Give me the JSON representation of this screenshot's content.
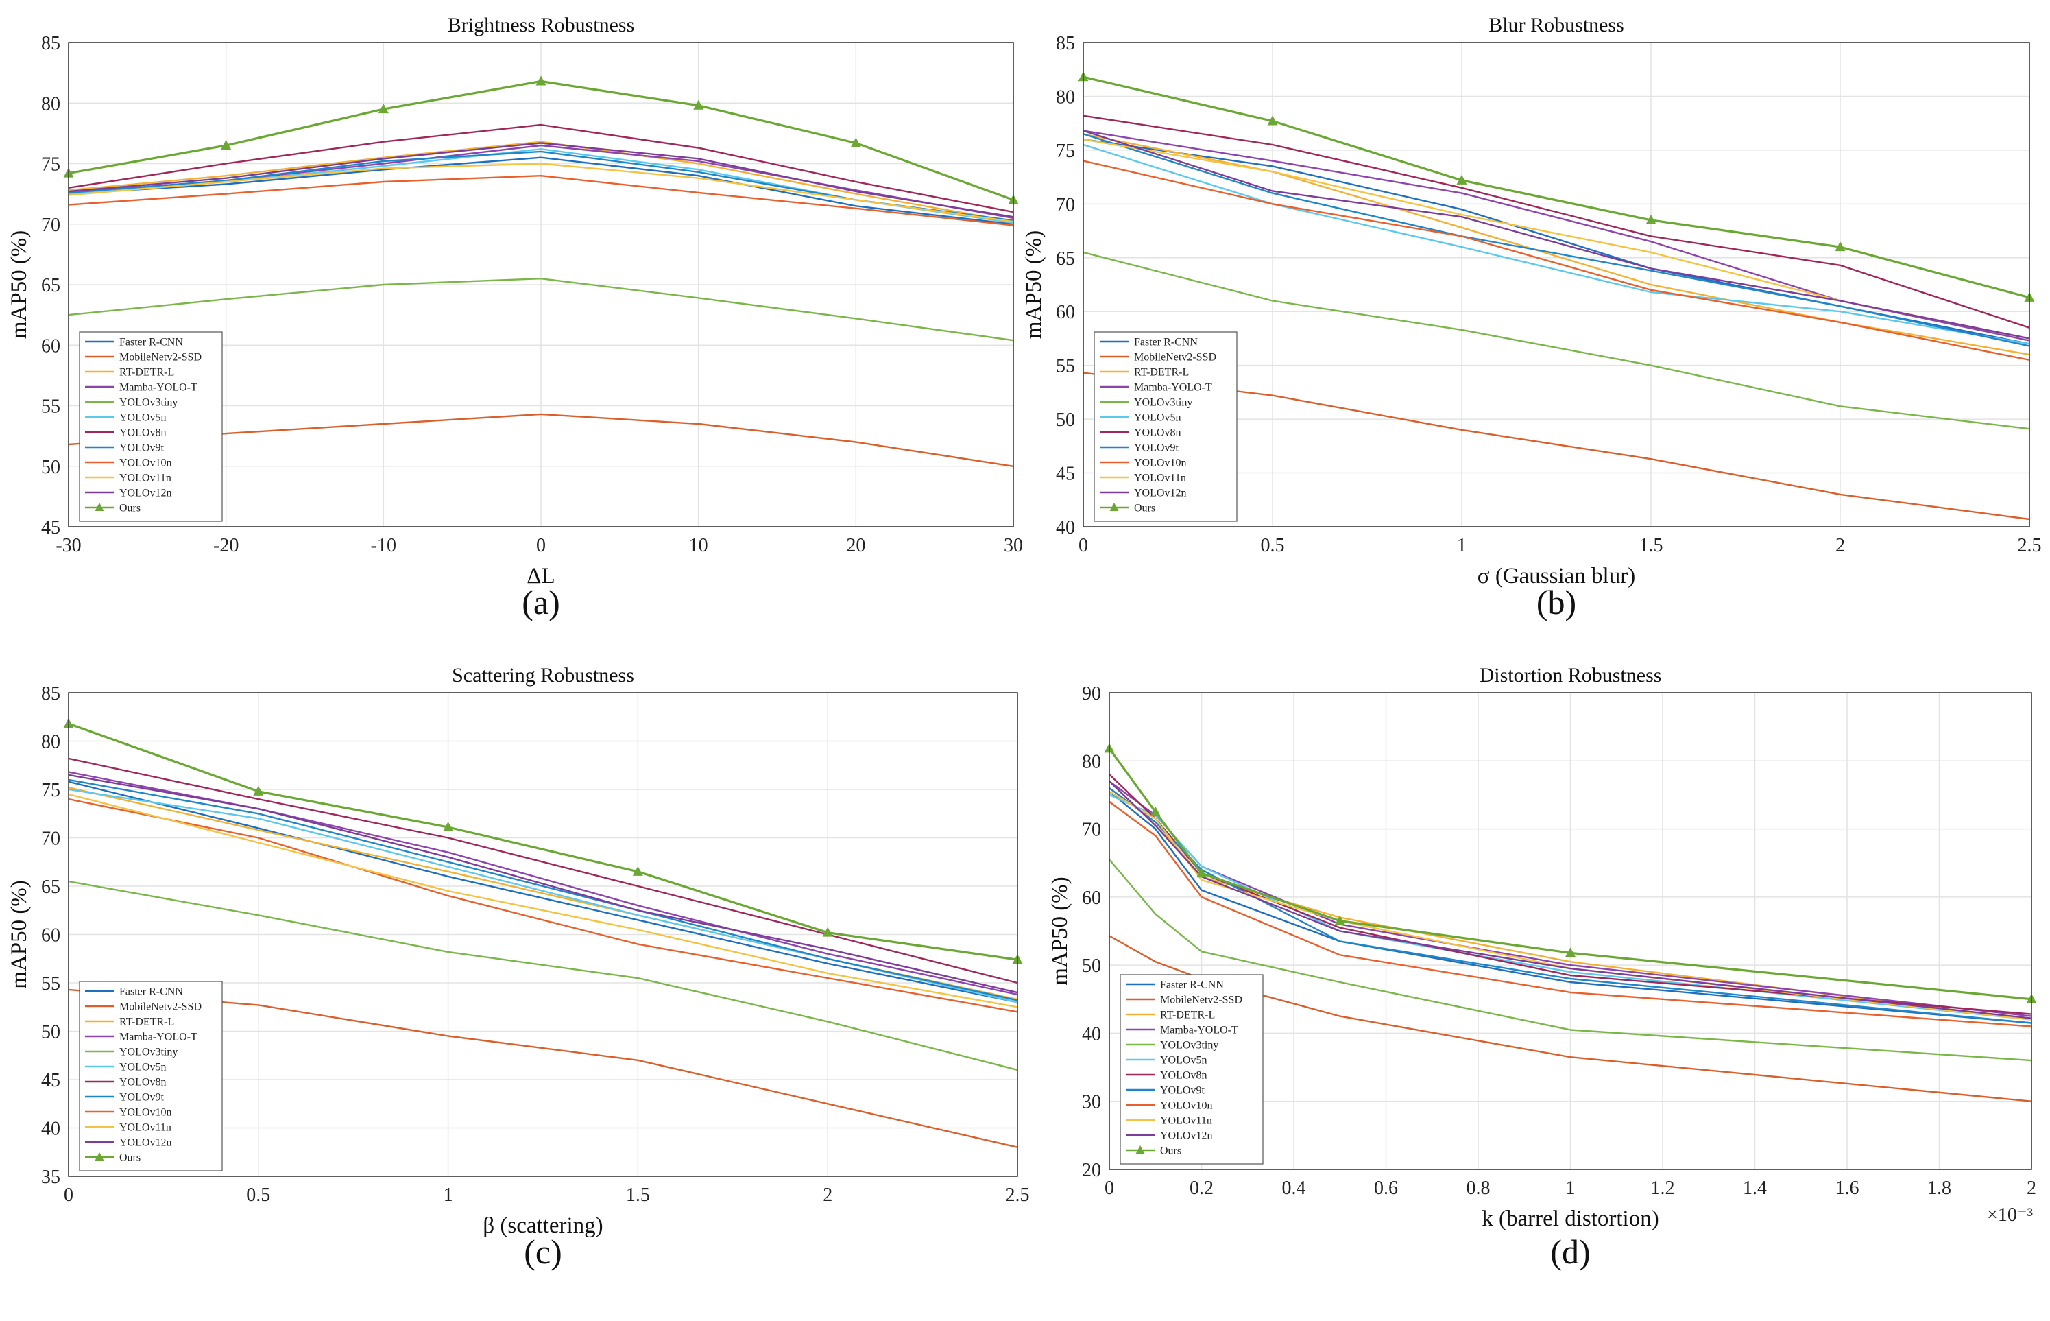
{
  "series_names": [
    "Faster R-CNN",
    "MobileNetv2-SSD",
    "RT-DETR-L",
    "Mamba-YOLO-T",
    "YOLOv3tiny",
    "YOLOv5n",
    "YOLOv8n",
    "YOLOv9t",
    "YOLOv10n",
    "YOLOv11n",
    "YOLOv12n",
    "Ours"
  ],
  "series_colors": [
    "#1f6fbf",
    "#d95f2b",
    "#f2b134",
    "#8e44ad",
    "#7ab648",
    "#5bc8ee",
    "#a0275a",
    "#1f86c8",
    "#e8602c",
    "#f5c242",
    "#7d3c98",
    "#6aa833"
  ],
  "ylabel": "mAP50 (%)",
  "chart_data": [
    {
      "type": "line",
      "title": "Brightness Robustness",
      "xlabel": "ΔL",
      "panel_label": "(a)",
      "x": [
        -30,
        -20,
        -10,
        0,
        10,
        20,
        30
      ],
      "xticks": [
        -30,
        -20,
        -10,
        0,
        10,
        20,
        30
      ],
      "xlim": [
        -30,
        30
      ],
      "ylim": [
        45,
        85
      ],
      "yticks": [
        45,
        50,
        55,
        60,
        65,
        70,
        75,
        80,
        85
      ],
      "legend_position": "bottom-left",
      "series": [
        {
          "name": "Faster R-CNN",
          "values": [
            72.5,
            73.3,
            74.5,
            75.5,
            74.0,
            71.5,
            70.0
          ]
        },
        {
          "name": "MobileNetv2-SSD",
          "values": [
            51.8,
            52.7,
            53.5,
            54.3,
            53.5,
            52.0,
            50.0
          ]
        },
        {
          "name": "RT-DETR-L",
          "values": [
            72.8,
            74.0,
            75.5,
            76.8,
            75.0,
            72.5,
            70.2
          ]
        },
        {
          "name": "Mamba-YOLO-T",
          "values": [
            72.6,
            73.6,
            75.0,
            76.5,
            75.2,
            72.8,
            70.5
          ]
        },
        {
          "name": "YOLOv3tiny",
          "values": [
            62.5,
            63.8,
            65.0,
            65.5,
            63.9,
            62.2,
            60.4
          ]
        },
        {
          "name": "YOLOv5n",
          "values": [
            72.5,
            73.5,
            74.8,
            76.2,
            74.5,
            72.0,
            70.1
          ]
        },
        {
          "name": "YOLOv8n",
          "values": [
            73.0,
            75.0,
            76.8,
            78.2,
            76.3,
            73.5,
            71.0
          ]
        },
        {
          "name": "YOLOv9t",
          "values": [
            72.6,
            73.6,
            75.2,
            76.0,
            74.3,
            72.0,
            70.3
          ]
        },
        {
          "name": "YOLOv10n",
          "values": [
            71.6,
            72.5,
            73.5,
            74.0,
            72.6,
            71.3,
            69.9
          ]
        },
        {
          "name": "YOLOv11n",
          "values": [
            72.4,
            73.5,
            74.6,
            75.0,
            73.8,
            72.0,
            70.2
          ]
        },
        {
          "name": "YOLOv12n",
          "values": [
            72.7,
            73.8,
            75.4,
            76.7,
            75.4,
            72.7,
            70.6
          ]
        },
        {
          "name": "Ours",
          "values": [
            74.2,
            76.5,
            79.5,
            81.8,
            79.8,
            76.7,
            72.0
          ]
        }
      ]
    },
    {
      "type": "line",
      "title": "Blur Robustness",
      "xlabel": "σ (Gaussian blur)",
      "panel_label": "(b)",
      "x": [
        0,
        0.5,
        1,
        1.5,
        2,
        2.5
      ],
      "xticks": [
        0,
        0.5,
        1,
        1.5,
        2,
        2.5
      ],
      "xlim": [
        0,
        2.5
      ],
      "ylim": [
        40,
        85
      ],
      "yticks": [
        40,
        45,
        50,
        55,
        60,
        65,
        70,
        75,
        80,
        85
      ],
      "legend_position": "bottom-left",
      "series": [
        {
          "name": "Faster R-CNN",
          "values": [
            76.0,
            73.5,
            69.5,
            64.0,
            60.5,
            57.0
          ]
        },
        {
          "name": "MobileNetv2-SSD",
          "values": [
            54.3,
            52.2,
            49.0,
            46.3,
            43.0,
            40.7
          ]
        },
        {
          "name": "RT-DETR-L",
          "values": [
            76.5,
            73.0,
            67.8,
            62.5,
            59.0,
            56.0
          ]
        },
        {
          "name": "Mamba-YOLO-T",
          "values": [
            76.8,
            74.0,
            71.0,
            66.5,
            61.0,
            57.3
          ]
        },
        {
          "name": "YOLOv3tiny",
          "values": [
            65.5,
            61.0,
            58.3,
            55.0,
            51.2,
            49.1
          ]
        },
        {
          "name": "YOLOv5n",
          "values": [
            75.5,
            70.0,
            66.0,
            61.8,
            60.0,
            57.0
          ]
        },
        {
          "name": "YOLOv8n",
          "values": [
            78.2,
            75.5,
            71.5,
            67.0,
            64.3,
            58.5
          ]
        },
        {
          "name": "YOLOv9t",
          "values": [
            76.5,
            71.0,
            67.0,
            63.8,
            60.5,
            56.8
          ]
        },
        {
          "name": "YOLOv10n",
          "values": [
            74.0,
            70.0,
            67.0,
            62.0,
            59.0,
            55.5
          ]
        },
        {
          "name": "YOLOv11n",
          "values": [
            76.0,
            73.0,
            69.0,
            65.5,
            61.0,
            57.5
          ]
        },
        {
          "name": "YOLOv12n",
          "values": [
            76.8,
            71.2,
            68.8,
            64.0,
            61.0,
            57.5
          ]
        },
        {
          "name": "Ours",
          "values": [
            81.8,
            77.7,
            72.2,
            68.5,
            66.0,
            61.3
          ]
        }
      ]
    },
    {
      "type": "line",
      "title": "Scattering Robustness",
      "xlabel": "β (scattering)",
      "panel_label": "(c)",
      "x": [
        0,
        0.5,
        1,
        1.5,
        2,
        2.5
      ],
      "xticks": [
        0,
        0.5,
        1,
        1.5,
        2,
        2.5
      ],
      "xlim": [
        0,
        2.5
      ],
      "ylim": [
        35,
        85
      ],
      "yticks": [
        35,
        40,
        45,
        50,
        55,
        60,
        65,
        70,
        75,
        80,
        85
      ],
      "legend_position": "bottom-left",
      "series": [
        {
          "name": "Faster R-CNN",
          "values": [
            75.8,
            71.0,
            66.0,
            61.5,
            57.0,
            53.0
          ]
        },
        {
          "name": "MobileNetv2-SSD",
          "values": [
            54.3,
            52.7,
            49.5,
            47.0,
            42.5,
            38.0
          ]
        },
        {
          "name": "RT-DETR-L",
          "values": [
            75.2,
            70.8,
            66.5,
            62.0,
            57.5,
            53.3
          ]
        },
        {
          "name": "Mamba-YOLO-T",
          "values": [
            76.8,
            73.0,
            68.5,
            63.0,
            58.0,
            53.8
          ]
        },
        {
          "name": "YOLOv3tiny",
          "values": [
            65.5,
            62.0,
            58.2,
            55.5,
            51.0,
            46.0
          ]
        },
        {
          "name": "YOLOv5n",
          "values": [
            75.0,
            72.0,
            67.0,
            62.0,
            57.5,
            53.0
          ]
        },
        {
          "name": "YOLOv8n",
          "values": [
            78.2,
            74.0,
            70.0,
            65.0,
            60.0,
            55.0
          ]
        },
        {
          "name": "YOLOv9t",
          "values": [
            76.0,
            72.5,
            67.5,
            62.5,
            57.5,
            53.2
          ]
        },
        {
          "name": "YOLOv10n",
          "values": [
            74.0,
            70.0,
            64.0,
            59.0,
            55.5,
            52.0
          ]
        },
        {
          "name": "YOLOv11n",
          "values": [
            74.5,
            69.5,
            64.5,
            60.5,
            56.0,
            52.5
          ]
        },
        {
          "name": "YOLOv12n",
          "values": [
            76.5,
            73.0,
            68.0,
            62.5,
            58.5,
            54.0
          ]
        },
        {
          "name": "Ours",
          "values": [
            81.8,
            74.8,
            71.1,
            66.5,
            60.2,
            57.4
          ]
        }
      ]
    },
    {
      "type": "line",
      "title": "Distortion Robustness",
      "xlabel": "k (barrel distortion)",
      "panel_label": "(d)",
      "x_multiplier": "×10⁻³",
      "x": [
        0,
        0.1,
        0.2,
        0.5,
        1,
        2
      ],
      "xticks": [
        0,
        0.2,
        0.4,
        0.6,
        0.8,
        1,
        1.2,
        1.4,
        1.6,
        1.8,
        2
      ],
      "xlim": [
        0,
        2
      ],
      "ylim": [
        20,
        90
      ],
      "yticks": [
        20,
        30,
        40,
        50,
        60,
        70,
        80,
        90
      ],
      "legend_position": "bottom-left",
      "series": [
        {
          "name": "Faster R-CNN",
          "values": [
            75.5,
            70.0,
            61.0,
            53.5,
            47.5,
            41.5
          ]
        },
        {
          "name": "MobileNetv2-SSD",
          "values": [
            54.3,
            50.5,
            48.0,
            42.5,
            36.5,
            30.0
          ]
        },
        {
          "name": "RT-DETR-L",
          "values": [
            76.0,
            71.0,
            63.0,
            57.0,
            50.5,
            42.0
          ]
        },
        {
          "name": "Mamba-YOLO-T",
          "values": [
            77.0,
            72.0,
            64.5,
            56.0,
            50.0,
            42.5
          ]
        },
        {
          "name": "YOLOv3tiny",
          "values": [
            65.5,
            57.5,
            52.0,
            47.5,
            40.5,
            36.0
          ]
        },
        {
          "name": "YOLOv5n",
          "values": [
            75.0,
            72.0,
            64.5,
            55.0,
            49.0,
            42.0
          ]
        },
        {
          "name": "YOLOv8n",
          "values": [
            78.0,
            71.5,
            63.5,
            55.5,
            48.5,
            42.8
          ]
        },
        {
          "name": "YOLOv9t",
          "values": [
            76.0,
            71.0,
            64.0,
            53.5,
            48.0,
            41.5
          ]
        },
        {
          "name": "YOLOv10n",
          "values": [
            74.0,
            69.0,
            60.0,
            51.5,
            46.0,
            41.0
          ]
        },
        {
          "name": "YOLOv11n",
          "values": [
            75.5,
            71.5,
            62.5,
            56.5,
            49.5,
            42.0
          ]
        },
        {
          "name": "YOLOv12n",
          "values": [
            77.0,
            70.5,
            63.0,
            55.0,
            49.5,
            42.2
          ]
        },
        {
          "name": "Ours",
          "values": [
            81.8,
            72.5,
            63.5,
            56.5,
            51.8,
            45.0
          ]
        }
      ]
    }
  ]
}
